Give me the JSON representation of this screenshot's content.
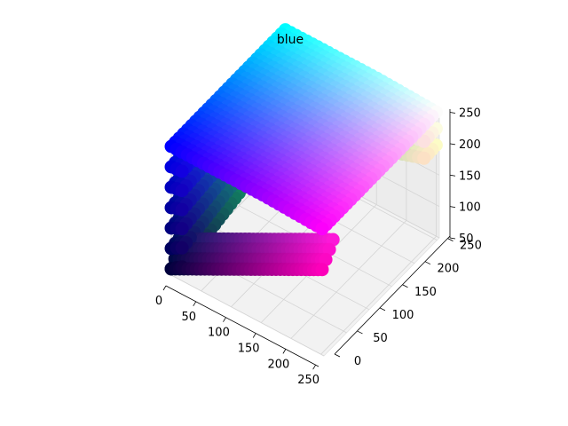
{
  "chart_data": {
    "type": "scatter",
    "projection": "3d",
    "title": "blue",
    "xlabel": "",
    "ylabel": "",
    "zlabel": "",
    "grid": true,
    "legend": "none",
    "x_range": [
      0,
      255
    ],
    "y_range": [
      0,
      255
    ],
    "z_range": [
      50,
      255
    ],
    "x_ticks": [
      0,
      50,
      100,
      150,
      200,
      250
    ],
    "y_ticks": [
      0,
      50,
      100,
      150,
      200,
      250
    ],
    "z_ticks": [
      50,
      100,
      150,
      200,
      250
    ],
    "x_tick_labels": [
      "0",
      "50",
      "100",
      "150",
      "200",
      "250"
    ],
    "y_tick_labels": [
      "0",
      "50",
      "100",
      "150",
      "200",
      "250"
    ],
    "z_tick_labels": [
      "50",
      "100",
      "150",
      "200",
      "250"
    ],
    "color_encoding": "rgb",
    "points": [
      {
        "x": 0,
        "y": 0,
        "z": 60
      },
      {
        "x": 0,
        "y": 0,
        "z": 120
      },
      {
        "x": 0,
        "y": 0,
        "z": 180
      },
      {
        "x": 0,
        "y": 0,
        "z": 245
      },
      {
        "x": 0,
        "y": 100,
        "z": 255
      },
      {
        "x": 0,
        "y": 200,
        "z": 255
      },
      {
        "x": 0,
        "y": 255,
        "z": 255
      },
      {
        "x": 40,
        "y": 40,
        "z": 110
      },
      {
        "x": 80,
        "y": 60,
        "z": 200
      },
      {
        "x": 120,
        "y": 90,
        "z": 230
      },
      {
        "x": 150,
        "y": 60,
        "z": 255
      },
      {
        "x": 160,
        "y": 120,
        "z": 250
      },
      {
        "x": 130,
        "y": 200,
        "z": 255
      },
      {
        "x": 200,
        "y": 200,
        "z": 255
      },
      {
        "x": 255,
        "y": 255,
        "z": 255
      },
      {
        "x": 100,
        "y": 20,
        "z": 140
      },
      {
        "x": 60,
        "y": 10,
        "z": 90
      },
      {
        "x": 30,
        "y": 0,
        "z": 70
      }
    ]
  }
}
